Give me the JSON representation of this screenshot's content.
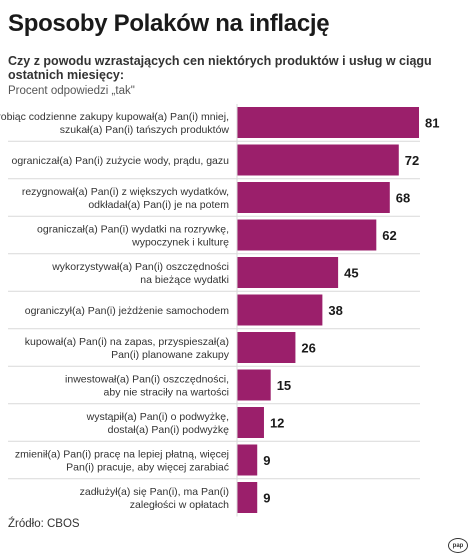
{
  "header": {
    "title": "Sposoby Polaków na inflację",
    "subtitle": "Czy z powodu wzrastających cen niektórych produktów i usług w ciągu ostatnich miesięcy:",
    "note": "Procent odpowiedzi „tak\""
  },
  "footer": {
    "source": "Źródło: CBOS",
    "logo": "pap"
  },
  "colors": {
    "bar": "#9b1f6b",
    "grid": "#d9d9d9"
  },
  "chart_data": {
    "type": "bar",
    "orientation": "horizontal",
    "categories": [
      [
        "robiąc codzienne zakupy kupował(a) Pan(i) mniej,",
        "szukał(a) Pan(i) tańszych produktów"
      ],
      [
        "ograniczał(a) Pan(i) zużycie wody, prądu, gazu"
      ],
      [
        "rezygnował(a) Pan(i) z większych wydatków,",
        "odkładał(a) Pan(i) je na potem"
      ],
      [
        "ograniczał(a) Pan(i) wydatki na rozrywkę,",
        "wypoczynek i kulturę"
      ],
      [
        "wykorzystywał(a) Pan(i) oszczędności",
        "na bieżące wydatki"
      ],
      [
        "ograniczył(a) Pan(i) jeżdżenie samochodem"
      ],
      [
        "kupował(a) Pan(i) na zapas, przyspieszał(a)",
        "Pan(i) planowane zakupy"
      ],
      [
        "inwestował(a) Pan(i) oszczędności,",
        "aby nie straciły na wartości"
      ],
      [
        "wystąpił(a) Pan(i) o podwyżkę,",
        "dostał(a) Pan(i) podwyżkę"
      ],
      [
        "zmienił(a) Pan(i) pracę na lepiej płatną, więcej",
        "Pan(i) pracuje, aby więcej zarabiać"
      ],
      [
        "zadłużył(a) się Pan(i), ma Pan(i)",
        "zaległości w opłatach"
      ]
    ],
    "values": [
      81,
      72,
      68,
      62,
      45,
      38,
      26,
      15,
      12,
      9,
      9
    ],
    "xlim": [
      0,
      81
    ],
    "grid": true
  }
}
